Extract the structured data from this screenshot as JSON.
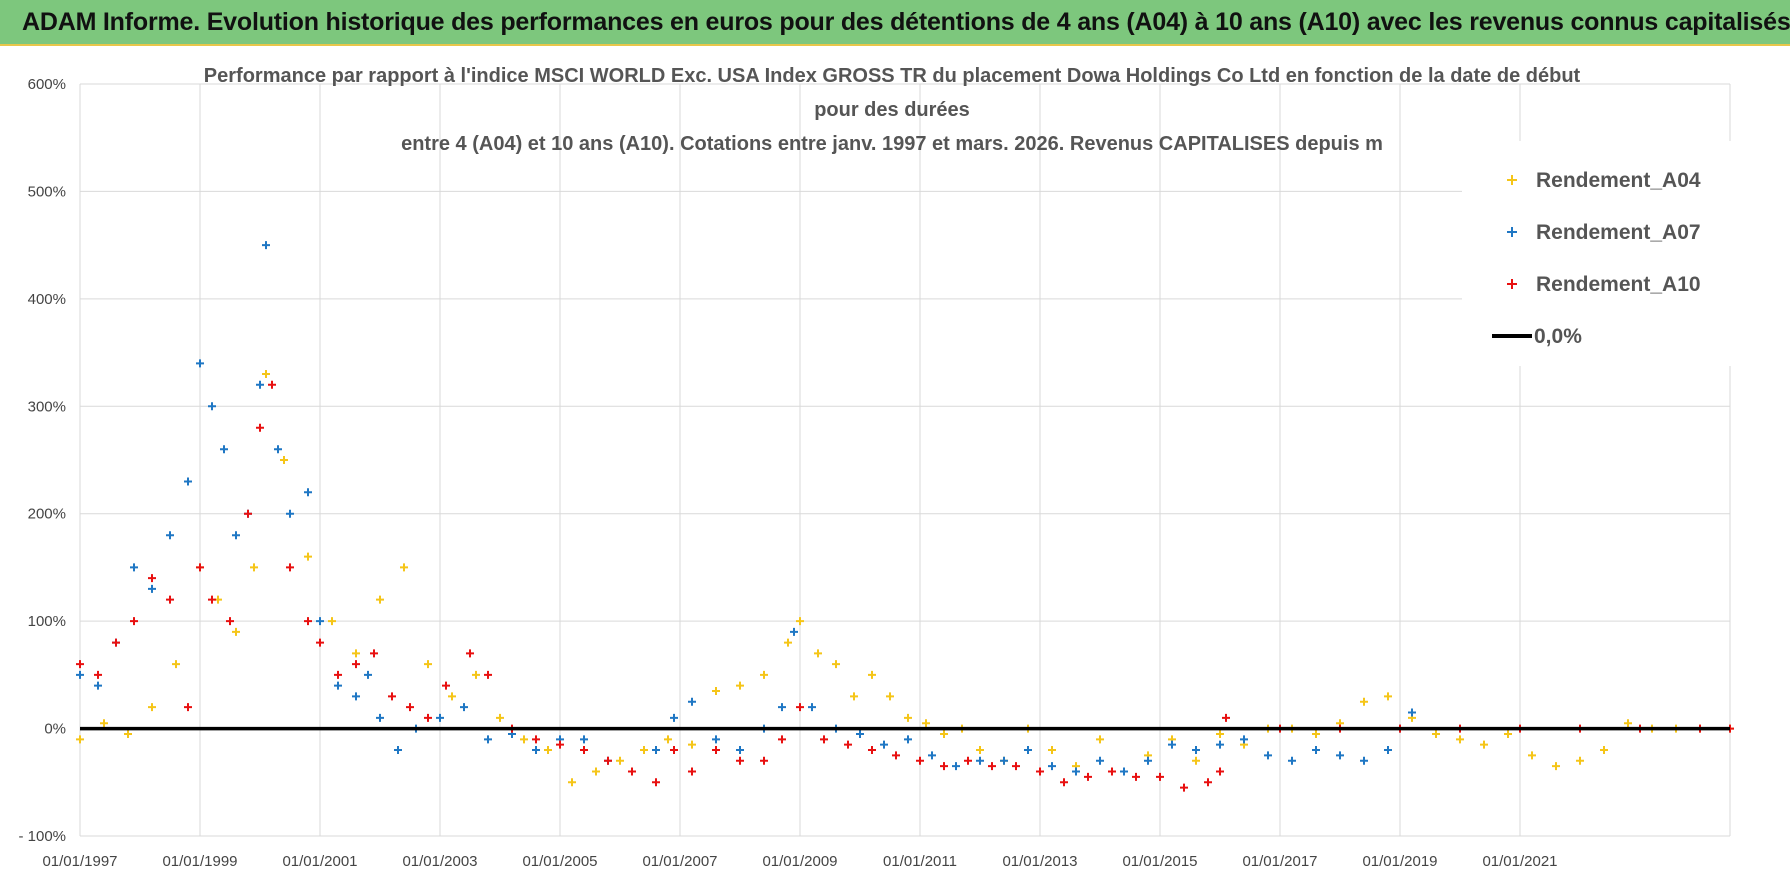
{
  "banner": {
    "title": "ADAM Informe. Evolution historique des performances en euros pour des détentions de 4 ans (A04) à 10 ans (A10) avec les revenus connus capitalisés"
  },
  "colors": {
    "banner_bg": "#7dc77d",
    "A04": "#f5c518",
    "A07": "#1f77c4",
    "A10": "#e81010",
    "zero": "#000000"
  },
  "chart_data": {
    "type": "scatter",
    "title_lines": [
      "Performance par rapport à l'indice MSCI WORLD Exc. USA Index GROSS TR  du placement Dowa Holdings Co Ltd en fonction de la date de début",
      "pour des durées",
      "entre 4 (A04) et 10 ans (A10).  Cotations entre janv. 1997 et mars. 2026.  Revenus CAPITALISES depuis m"
    ],
    "ylim": [
      -100,
      600
    ],
    "yticks": [
      -100,
      0,
      100,
      200,
      300,
      400,
      500,
      600
    ],
    "ytick_labels": [
      "- 100%",
      "0%",
      "100%",
      "200%",
      "300%",
      "400%",
      "500%",
      "600%"
    ],
    "xlim": [
      1997.0,
      2024.5
    ],
    "xticks": [
      1997,
      1999,
      2001,
      2003,
      2005,
      2007,
      2009,
      2011,
      2013,
      2015,
      2017,
      2019,
      2021
    ],
    "xtick_labels": [
      "01/01/1997",
      "01/01/1999",
      "01/01/2001",
      "01/01/2003",
      "01/01/2005",
      "01/01/2007",
      "01/01/2009",
      "01/01/2011",
      "01/01/2013",
      "01/01/2015",
      "01/01/2017",
      "01/01/2019",
      "01/01/2021"
    ],
    "legend": [
      {
        "name": "Rendement_A04",
        "color": "#f5c518",
        "marker": "+"
      },
      {
        "name": "Rendement_A07",
        "color": "#1f77c4",
        "marker": "+"
      },
      {
        "name": "Rendement_A10",
        "color": "#e81010",
        "marker": "+"
      },
      {
        "name": "0,0%",
        "color": "#000000",
        "marker": "line"
      }
    ],
    "reference_line": {
      "name": "0,0%",
      "y": 0
    },
    "series": [
      {
        "name": "Rendement_A04",
        "x": [
          1997.0,
          1997.4,
          1997.8,
          1998.2,
          1998.6,
          1999.0,
          1999.3,
          1999.6,
          1999.9,
          2000.1,
          2000.4,
          2000.8,
          2001.2,
          2001.6,
          2002.0,
          2002.4,
          2002.8,
          2003.2,
          2003.6,
          2004.0,
          2004.4,
          2004.8,
          2005.2,
          2005.6,
          2006.0,
          2006.4,
          2006.8,
          2007.2,
          2007.6,
          2008.0,
          2008.4,
          2008.8,
          2009.0,
          2009.3,
          2009.6,
          2009.9,
          2010.2,
          2010.5,
          2010.8,
          2011.1,
          2011.4,
          2011.7,
          2012.0,
          2012.4,
          2012.8,
          2013.2,
          2013.6,
          2014.0,
          2014.4,
          2014.8,
          2015.2,
          2015.6,
          2016.0,
          2016.4,
          2016.8,
          2017.2,
          2017.6,
          2018.0,
          2018.4,
          2018.8,
          2019.2,
          2019.6,
          2020.0,
          2020.4,
          2020.8,
          2021.2,
          2021.6,
          2022.0,
          2022.4,
          2022.8,
          2023.2,
          2023.6,
          2024.0,
          2024.5
        ],
        "y": [
          -10,
          5,
          -5,
          20,
          60,
          150,
          120,
          90,
          150,
          330,
          250,
          160,
          100,
          70,
          120,
          150,
          60,
          30,
          50,
          10,
          -10,
          -20,
          -50,
          -40,
          -30,
          -20,
          -10,
          -15,
          35,
          40,
          50,
          80,
          100,
          70,
          60,
          30,
          50,
          30,
          10,
          5,
          -5,
          0,
          -20,
          -30,
          0,
          -20,
          -35,
          -10,
          -40,
          -25,
          -10,
          -30,
          -5,
          -15,
          0,
          0,
          -5,
          5,
          25,
          30,
          10,
          -5,
          -10,
          -15,
          -5,
          -25,
          -35,
          -30,
          -20,
          5,
          0,
          0,
          0,
          0
        ]
      },
      {
        "name": "Rendement_A07",
        "x": [
          1997.0,
          1997.3,
          1997.6,
          1997.9,
          1998.2,
          1998.5,
          1998.8,
          1999.0,
          1999.2,
          1999.4,
          1999.6,
          1999.8,
          2000.0,
          2000.1,
          2000.3,
          2000.5,
          2000.8,
          2001.0,
          2001.3,
          2001.6,
          2001.8,
          2002.0,
          2002.3,
          2002.6,
          2003.0,
          2003.4,
          2003.8,
          2004.2,
          2004.6,
          2005.0,
          2005.4,
          2005.8,
          2006.2,
          2006.6,
          2006.9,
          2007.2,
          2007.6,
          2008.0,
          2008.4,
          2008.7,
          2008.9,
          2009.2,
          2009.6,
          2010.0,
          2010.4,
          2010.8,
          2011.2,
          2011.6,
          2012.0,
          2012.4,
          2012.8,
          2013.2,
          2013.6,
          2014.0,
          2014.4,
          2014.8,
          2015.2,
          2015.6,
          2016.0,
          2016.4,
          2016.8,
          2017.2,
          2017.6,
          2018.0,
          2018.4,
          2018.8,
          2019.0,
          2019.2
        ],
        "y": [
          50,
          40,
          80,
          150,
          130,
          180,
          230,
          340,
          300,
          260,
          180,
          200,
          320,
          450,
          260,
          200,
          220,
          100,
          40,
          30,
          50,
          10,
          -20,
          0,
          10,
          20,
          -10,
          -5,
          -20,
          -10,
          -10,
          -30,
          -40,
          -20,
          10,
          25,
          -10,
          -20,
          0,
          20,
          90,
          20,
          0,
          -5,
          -15,
          -10,
          -25,
          -35,
          -30,
          -30,
          -20,
          -35,
          -40,
          -30,
          -40,
          -30,
          -15,
          -20,
          -15,
          -10,
          -25,
          -30,
          -20,
          -25,
          -30,
          -20,
          0,
          15
        ]
      },
      {
        "name": "Rendement_A10",
        "x": [
          1997.0,
          1997.3,
          1997.6,
          1997.9,
          1998.2,
          1998.5,
          1998.8,
          1999.0,
          1999.2,
          1999.5,
          1999.8,
          2000.0,
          2000.2,
          2000.5,
          2000.8,
          2001.0,
          2001.3,
          2001.6,
          2001.9,
          2002.2,
          2002.5,
          2002.8,
          2003.1,
          2003.5,
          2003.8,
          2004.2,
          2004.6,
          2005.0,
          2005.4,
          2005.8,
          2006.2,
          2006.6,
          2006.9,
          2007.2,
          2007.6,
          2008.0,
          2008.4,
          2008.7,
          2009.0,
          2009.4,
          2009.8,
          2010.2,
          2010.6,
          2011.0,
          2011.4,
          2011.8,
          2012.2,
          2012.6,
          2013.0,
          2013.4,
          2013.8,
          2014.2,
          2014.6,
          2015.0,
          2015.4,
          2015.8,
          2016.0,
          2016.1,
          2017.0,
          2018.0,
          2019.0,
          2020.0,
          2021.0,
          2022.0,
          2023.0,
          2024.0,
          2024.5
        ],
        "y": [
          60,
          50,
          80,
          100,
          140,
          120,
          20,
          150,
          120,
          100,
          200,
          280,
          320,
          150,
          100,
          80,
          50,
          60,
          70,
          30,
          20,
          10,
          40,
          70,
          50,
          0,
          -10,
          -15,
          -20,
          -30,
          -40,
          -50,
          -20,
          -40,
          -20,
          -30,
          -30,
          -10,
          20,
          -10,
          -15,
          -20,
          -25,
          -30,
          -35,
          -30,
          -35,
          -35,
          -40,
          -50,
          -45,
          -40,
          -45,
          -45,
          -55,
          -50,
          -40,
          10,
          0,
          0,
          0,
          0,
          0,
          0,
          0,
          0,
          0
        ]
      }
    ]
  }
}
